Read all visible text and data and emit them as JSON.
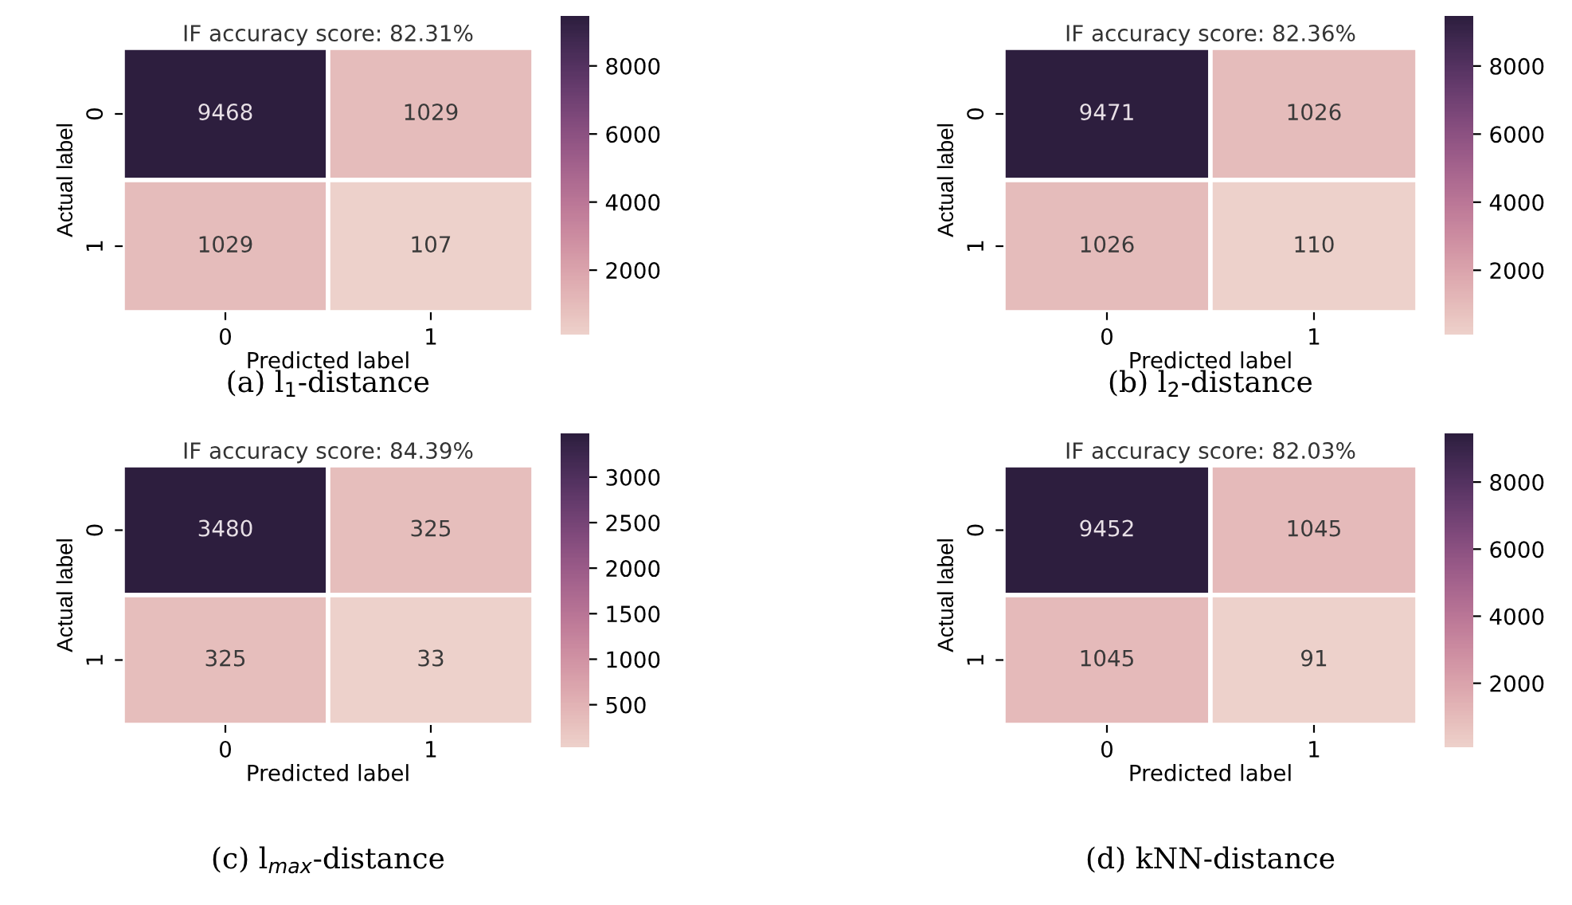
{
  "chart_data": [
    {
      "type": "heatmap",
      "title": "IF accuracy score: 82.31%",
      "xlabel": "Predicted label",
      "ylabel": "Actual label",
      "categories": [
        "0",
        "1"
      ],
      "y_categories": [
        "0",
        "1"
      ],
      "cells": [
        [
          9468,
          1029
        ],
        [
          1029,
          107
        ]
      ],
      "data_labels": true,
      "clim": [
        107,
        9468
      ],
      "cticks": [
        2000,
        4000,
        6000,
        8000
      ],
      "annotations": [
        "(a) l$_{1}$-distance"
      ]
    },
    {
      "type": "heatmap",
      "title": "IF accuracy score: 82.36%",
      "xlabel": "Predicted label",
      "ylabel": "Actual label",
      "categories": [
        "0",
        "1"
      ],
      "y_categories": [
        "0",
        "1"
      ],
      "cells": [
        [
          9471,
          1026
        ],
        [
          1026,
          110
        ]
      ],
      "data_labels": true,
      "clim": [
        110,
        9471
      ],
      "cticks": [
        2000,
        4000,
        6000,
        8000
      ],
      "annotations": [
        "(b) l$_{2}$-distance"
      ]
    },
    {
      "type": "heatmap",
      "title": "IF accuracy score: 84.39%",
      "xlabel": "Predicted label",
      "ylabel": "Actual label",
      "categories": [
        "0",
        "1"
      ],
      "y_categories": [
        "0",
        "1"
      ],
      "cells": [
        [
          3480,
          325
        ],
        [
          325,
          33
        ]
      ],
      "data_labels": true,
      "clim": [
        33,
        3480
      ],
      "cticks": [
        500,
        1000,
        1500,
        2000,
        2500,
        3000
      ],
      "annotations": [
        "(c) l$_{max}$-distance"
      ]
    },
    {
      "type": "heatmap",
      "title": "IF accuracy score: 82.03%",
      "xlabel": "Predicted label",
      "ylabel": "Actual label",
      "categories": [
        "0",
        "1"
      ],
      "y_categories": [
        "0",
        "1"
      ],
      "cells": [
        [
          9452,
          1045
        ],
        [
          1045,
          91
        ]
      ],
      "data_labels": true,
      "clim": [
        91,
        9452
      ],
      "cticks": [
        2000,
        4000,
        6000,
        8000
      ],
      "annotations": [
        "(d) kNN-distance"
      ]
    }
  ]
}
